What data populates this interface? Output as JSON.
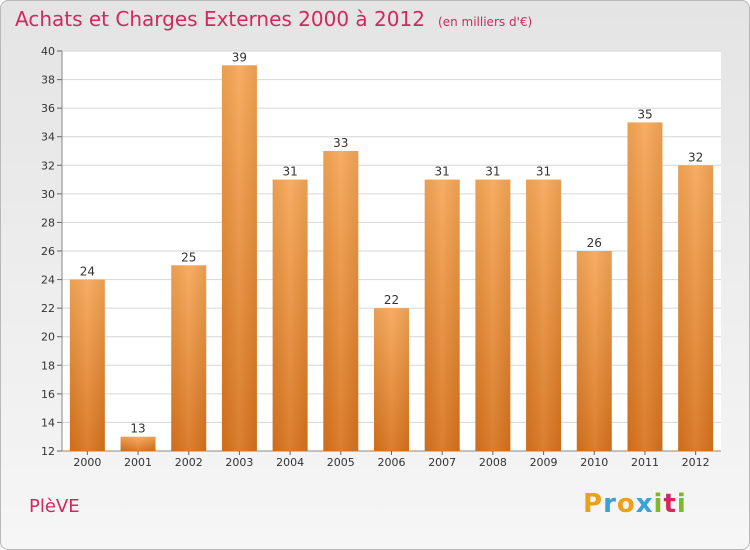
{
  "header": {
    "title": "Achats et Charges Externes 2000 à 2012",
    "unit": "(en milliers d'€)"
  },
  "commune": "PlèVE",
  "logo": {
    "text": "Proxiti",
    "letters": [
      "P",
      "r",
      "o",
      "x",
      "i",
      "t",
      "i"
    ],
    "colors": [
      "#e9a21a",
      "#3aa0d8",
      "#e9a21a",
      "#3aa0d8",
      "#80b826",
      "#d2285e",
      "#80b826"
    ]
  },
  "colors": {
    "accent": "#d2285e",
    "bar_top": "#f6a756",
    "bar_bottom": "#d8731d"
  },
  "chart_data": {
    "type": "bar",
    "title": "Achats et Charges Externes 2000 à 2012",
    "categories": [
      "2000",
      "2001",
      "2002",
      "2003",
      "2004",
      "2005",
      "2006",
      "2007",
      "2008",
      "2009",
      "2010",
      "2011",
      "2012"
    ],
    "values": [
      24,
      13,
      25,
      39,
      31,
      33,
      22,
      31,
      31,
      31,
      26,
      35,
      32
    ],
    "ylim": [
      12,
      40
    ],
    "yticks": [
      12,
      14,
      16,
      18,
      20,
      22,
      24,
      26,
      28,
      30,
      32,
      34,
      36,
      38,
      40
    ],
    "grid": true
  }
}
